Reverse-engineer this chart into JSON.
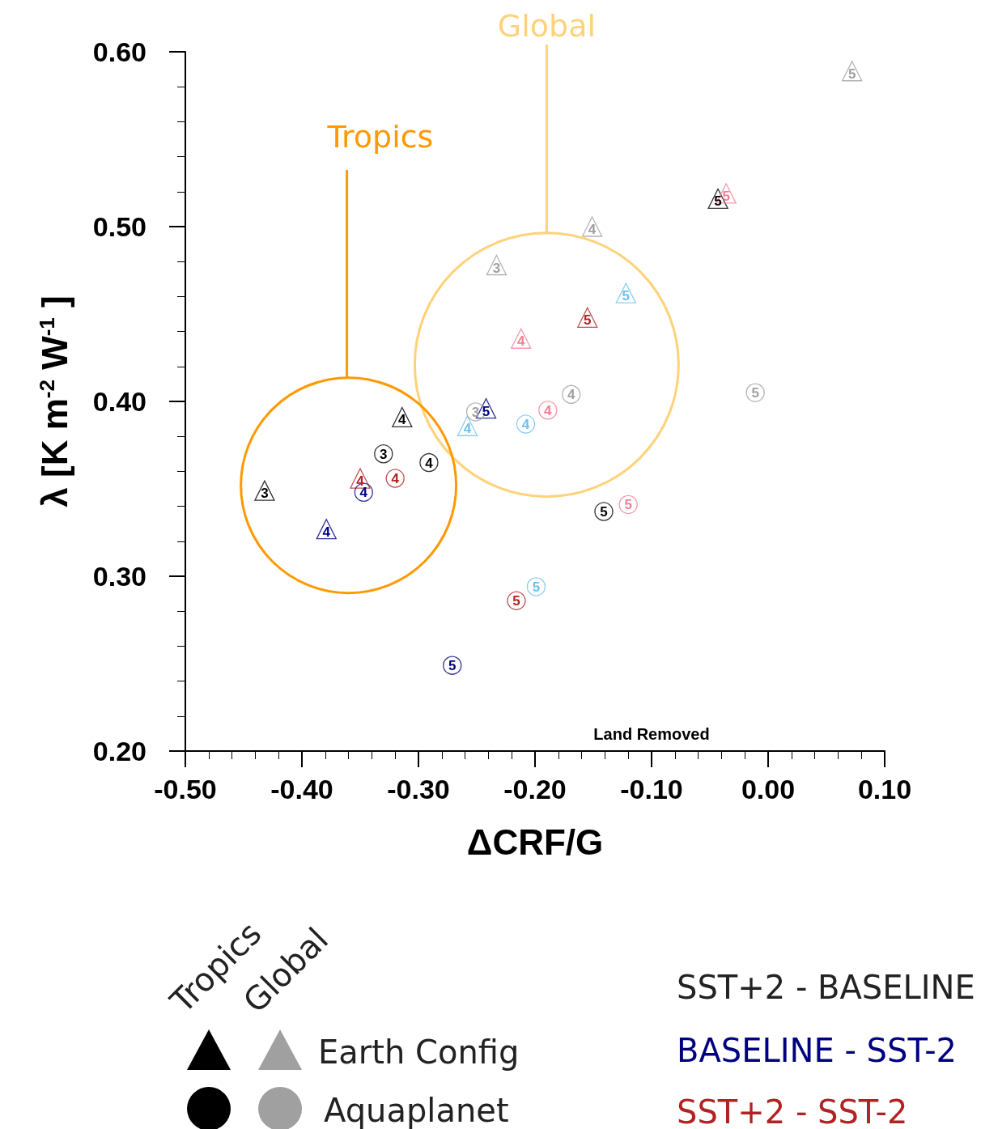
{
  "chart_data": {
    "type": "scatter",
    "xlabel": "ΔCRF/G",
    "ylabel": "λ [K m$^{-2}$ W$^{-1}$ ]",
    "xlim": [
      -0.5,
      0.1
    ],
    "ylim": [
      0.2,
      0.6
    ],
    "xticks": [
      {
        "value": -0.5,
        "label": "-0.50"
      },
      {
        "value": -0.4,
        "label": "-0.40"
      },
      {
        "value": -0.3,
        "label": "-0.30"
      },
      {
        "value": -0.2,
        "label": "-0.20"
      },
      {
        "value": -0.1,
        "label": "-0.10"
      },
      {
        "value": 0,
        "label": "0.00"
      },
      {
        "value": 0.1,
        "label": "0.10"
      }
    ],
    "yticks": [
      {
        "value": 0.2,
        "label": "0.20"
      },
      {
        "value": 0.3,
        "label": "0.30"
      },
      {
        "value": 0.4,
        "label": "0.40"
      },
      {
        "value": 0.5,
        "label": "0.50"
      },
      {
        "value": 0.6,
        "label": "0.60"
      }
    ],
    "grid": false,
    "series": [
      {
        "color": "#000000",
        "marker": "triangle",
        "x": [
          -0.432,
          -0.314,
          -0.043
        ],
        "values": [
          0.349,
          0.391,
          0.516
        ]
      },
      {
        "color": "#000080",
        "marker": "triangle",
        "x": [
          -0.379,
          -0.242
        ],
        "values": [
          0.327,
          0.396
        ]
      },
      {
        "color": "#b22222",
        "marker": "triangle",
        "x": [
          -0.35,
          -0.155
        ],
        "values": [
          0.356,
          0.448
        ]
      },
      {
        "color": "#a0a0a0",
        "marker": "triangle",
        "x": [
          -0.233,
          -0.151,
          0.072
        ],
        "values": [
          0.478,
          0.5,
          0.589
        ]
      },
      {
        "color": "#6fc0ee",
        "marker": "triangle",
        "x": [
          -0.258,
          -0.122
        ],
        "values": [
          0.386,
          0.462
        ]
      },
      {
        "color": "#f27f95",
        "marker": "triangle",
        "x": [
          -0.212,
          -0.036
        ],
        "values": [
          0.436,
          0.519
        ]
      },
      {
        "color": "#000000",
        "marker": "circle",
        "x": [
          -0.33,
          -0.291,
          -0.141
        ],
        "values": [
          0.37,
          0.365,
          0.337
        ]
      },
      {
        "color": "#000080",
        "marker": "circle",
        "x": [
          -0.347,
          -0.271
        ],
        "values": [
          0.348,
          0.249
        ]
      },
      {
        "color": "#b22222",
        "marker": "circle",
        "x": [
          -0.32,
          -0.216
        ],
        "values": [
          0.356,
          0.286
        ]
      },
      {
        "color": "#a0a0a0",
        "marker": "circle",
        "x": [
          -0.251,
          -0.169,
          -0.011
        ],
        "values": [
          0.394,
          0.404,
          0.405
        ]
      },
      {
        "color": "#6fc0ee",
        "marker": "circle",
        "x": [
          -0.208,
          -0.199
        ],
        "values": [
          0.387,
          0.294
        ]
      },
      {
        "color": "#f27f95",
        "marker": "circle",
        "x": [
          -0.189,
          -0.12
        ],
        "values": [
          0.395,
          0.341
        ]
      }
    ],
    "annotations": [
      "Global",
      "Tropics",
      "Land Removed",
      "Tropics",
      "Global",
      "Earth Config",
      "Aquaplanet",
      "SST+2 - BASELINE",
      "BASELINE - SST-2",
      "SST+2 - SST-2",
      {
        "text": "3",
        "x": -0.432,
        "y": 0.349
      },
      {
        "text": "4",
        "x": -0.314,
        "y": 0.391
      },
      {
        "text": "5",
        "x": -0.043,
        "y": 0.516
      },
      {
        "text": "4",
        "x": -0.379,
        "y": 0.327
      },
      {
        "text": "5",
        "x": -0.242,
        "y": 0.396
      },
      {
        "text": "4",
        "x": -0.35,
        "y": 0.356
      },
      {
        "text": "5",
        "x": -0.155,
        "y": 0.448
      },
      {
        "text": "3",
        "x": -0.233,
        "y": 0.478
      },
      {
        "text": "4",
        "x": -0.151,
        "y": 0.5
      },
      {
        "text": "5",
        "x": 0.072,
        "y": 0.589
      },
      {
        "text": "4",
        "x": -0.258,
        "y": 0.386
      },
      {
        "text": "5",
        "x": -0.122,
        "y": 0.462
      },
      {
        "text": "4",
        "x": -0.212,
        "y": 0.436
      },
      {
        "text": "5",
        "x": -0.036,
        "y": 0.519
      },
      {
        "text": "3",
        "x": -0.33,
        "y": 0.37
      },
      {
        "text": "4",
        "x": -0.291,
        "y": 0.365
      },
      {
        "text": "5",
        "x": -0.141,
        "y": 0.337
      },
      {
        "text": "4",
        "x": -0.347,
        "y": 0.348
      },
      {
        "text": "5",
        "x": -0.271,
        "y": 0.249
      },
      {
        "text": "4",
        "x": -0.32,
        "y": 0.356
      },
      {
        "text": "5",
        "x": -0.216,
        "y": 0.286
      },
      {
        "text": "3",
        "x": -0.251,
        "y": 0.394
      },
      {
        "text": "4",
        "x": -0.169,
        "y": 0.404
      },
      {
        "text": "5",
        "x": -0.011,
        "y": 0.405
      },
      {
        "text": "4",
        "x": -0.208,
        "y": 0.387
      },
      {
        "text": "5",
        "x": -0.199,
        "y": 0.294
      },
      {
        "text": "4",
        "x": -0.189,
        "y": 0.395
      },
      {
        "text": "5",
        "x": -0.12,
        "y": 0.341
      }
    ]
  }
}
